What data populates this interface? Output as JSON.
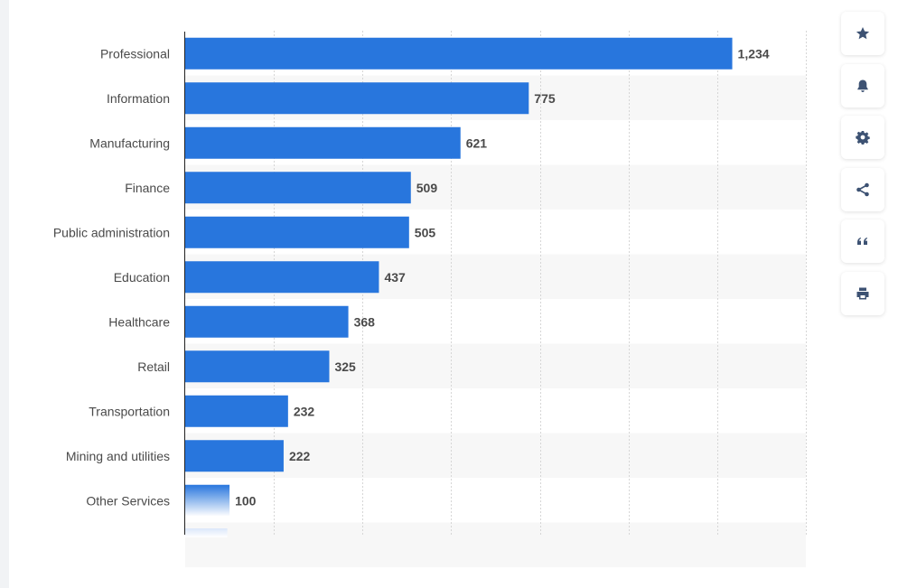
{
  "chart_data": {
    "type": "bar",
    "orientation": "horizontal",
    "categories": [
      "Professional",
      "Information",
      "Manufacturing",
      "Finance",
      "Public administration",
      "Education",
      "Healthcare",
      "Retail",
      "Transportation",
      "Mining and utilities",
      "Other Services"
    ],
    "values": [
      1234,
      775,
      621,
      509,
      505,
      437,
      368,
      325,
      232,
      222,
      100
    ],
    "value_labels": [
      "1,234",
      "775",
      "621",
      "509",
      "505",
      "437",
      "368",
      "325",
      "232",
      "222",
      "100"
    ],
    "partial_last_bar_value": 95,
    "xlim": [
      0,
      1400
    ],
    "x_gridline_step": 200,
    "grid": true,
    "bar_color": "#2876dd",
    "title": "",
    "xlabel": "",
    "ylabel": ""
  },
  "toolbar": [
    {
      "name": "favorite-button",
      "icon": "star-icon"
    },
    {
      "name": "notification-button",
      "icon": "bell-icon"
    },
    {
      "name": "settings-button",
      "icon": "gear-icon"
    },
    {
      "name": "share-button",
      "icon": "share-icon"
    },
    {
      "name": "cite-button",
      "icon": "quote-icon"
    },
    {
      "name": "print-button",
      "icon": "printer-icon"
    }
  ]
}
